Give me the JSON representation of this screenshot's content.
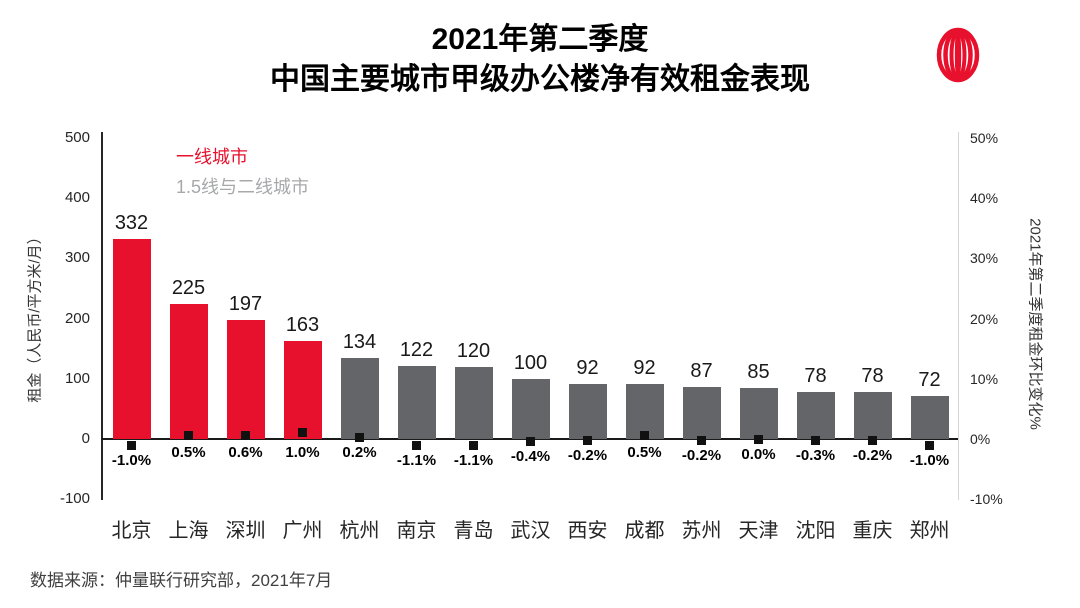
{
  "title": {
    "line1": "2021年第二季度",
    "line2": "中国主要城市甲级办公楼净有效租金表现"
  },
  "logo": {
    "text": "JLL",
    "ring_color": "#e8112d",
    "text_color": "#1a1a1e"
  },
  "source": "数据来源：仲量联行研究部，2021年7月",
  "chart_data": {
    "type": "bar",
    "title": "2021年第二季度 中国主要城市甲级办公楼净有效租金表现",
    "categories": [
      "北京",
      "上海",
      "深圳",
      "广州",
      "杭州",
      "南京",
      "青岛",
      "武汉",
      "西安",
      "成都",
      "苏州",
      "天津",
      "沈阳",
      "重庆",
      "郑州"
    ],
    "series": [
      {
        "name": "净有效租金",
        "type": "bar",
        "values": [
          332,
          225,
          197,
          163,
          134,
          122,
          120,
          100,
          92,
          92,
          87,
          85,
          78,
          78,
          72
        ],
        "colors": [
          "#e8112d",
          "#e8112d",
          "#e8112d",
          "#e8112d",
          "#646569",
          "#646569",
          "#646569",
          "#646569",
          "#646569",
          "#646569",
          "#646569",
          "#646569",
          "#646569",
          "#646569",
          "#646569"
        ]
      },
      {
        "name": "2021年第二季度租金环比变化%",
        "type": "scatter",
        "values": [
          -1.0,
          0.5,
          0.6,
          1.0,
          0.2,
          -1.1,
          -1.1,
          -0.4,
          -0.2,
          0.5,
          -0.2,
          0.0,
          -0.3,
          -0.2,
          -1.0
        ],
        "labels": [
          "-1.0%",
          "0.5%",
          "0.6%",
          "1.0%",
          "0.2%",
          "-1.1%",
          "-1.1%",
          "-0.4%",
          "-0.2%",
          "0.5%",
          "-0.2%",
          "0.0%",
          "-0.3%",
          "-0.2%",
          "-1.0%"
        ],
        "marker_color": "#111111"
      }
    ],
    "left_axis": {
      "title": "租金（人民币/平方米/月）",
      "ticks": [
        500,
        400,
        300,
        200,
        100,
        0,
        -100
      ],
      "min": -100,
      "max": 500
    },
    "right_axis": {
      "title": "2021年第二季度租金环比变化%",
      "ticks": [
        "50%",
        "40%",
        "30%",
        "20%",
        "10%",
        "0%",
        "-10%"
      ],
      "min": -10,
      "max": 50
    },
    "legend": [
      {
        "label": "一线城市",
        "color": "#e8112d"
      },
      {
        "label": "1.5线与二线城市",
        "color": "#a7a8aa"
      }
    ],
    "layout_hints": {
      "grid": false,
      "legend_position": "top-left-inside",
      "bar_tier1_count": 4
    }
  }
}
